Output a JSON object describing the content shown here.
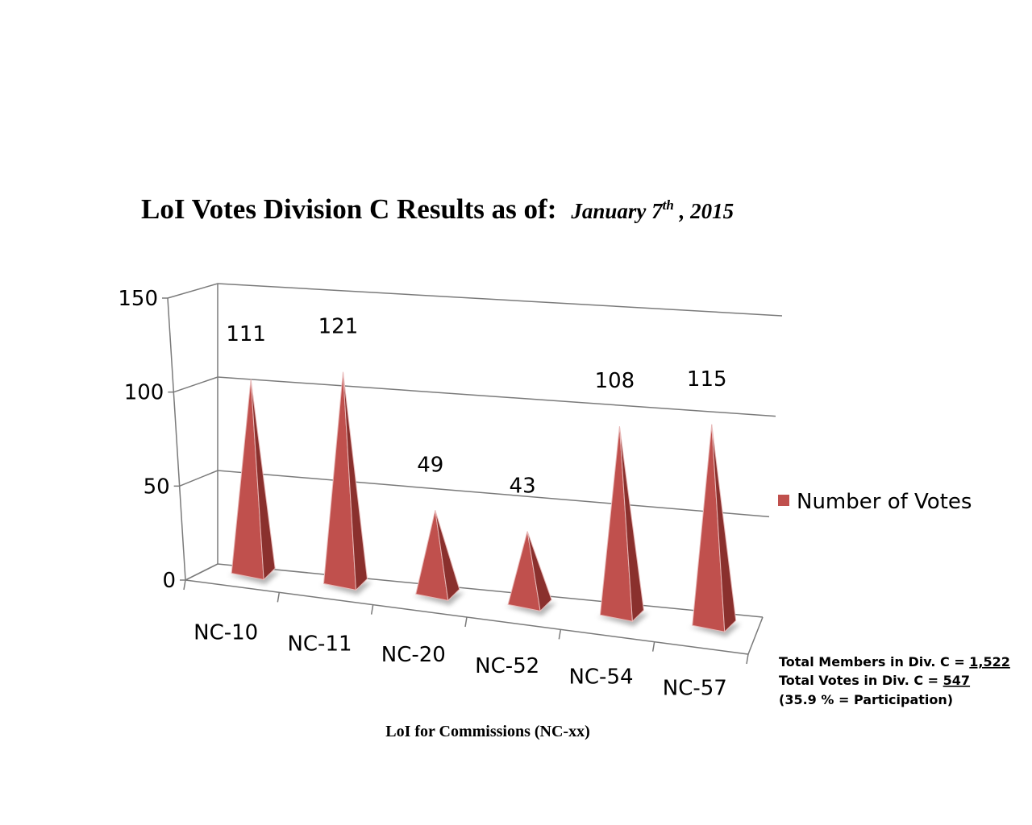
{
  "title": {
    "main": "LoI Votes Division C Results as of:",
    "date_prefix": "January 7",
    "date_sup": "th",
    "date_suffix": " , 2015"
  },
  "stats": {
    "members_label": "Total Members in Div. C = ",
    "members_value": "1,522",
    "votes_label": "Total Votes in Div. C = ",
    "votes_value": "547",
    "participation": "(35.9 % = Participation)"
  },
  "chart_data": {
    "type": "bar",
    "bar_shape": "3d-pyramid",
    "categories": [
      "NC-10",
      "NC-11",
      "NC-20",
      "NC-52",
      "NC-54",
      "NC-57"
    ],
    "series": [
      {
        "name": "Number of Votes",
        "values": [
          111,
          121,
          49,
          43,
          108,
          115
        ],
        "color": "#c0504d"
      }
    ],
    "data_labels": [
      "111",
      "121",
      "49",
      "43",
      "108",
      "115"
    ],
    "xlabel": "LoI for Commissions (NC-xx)",
    "ylabel": "",
    "ylim": [
      0,
      150
    ],
    "yticks": [
      0,
      50,
      100,
      150
    ],
    "ytick_labels": [
      "0",
      "50",
      "100",
      "150"
    ],
    "grid": true,
    "legend": "right"
  }
}
